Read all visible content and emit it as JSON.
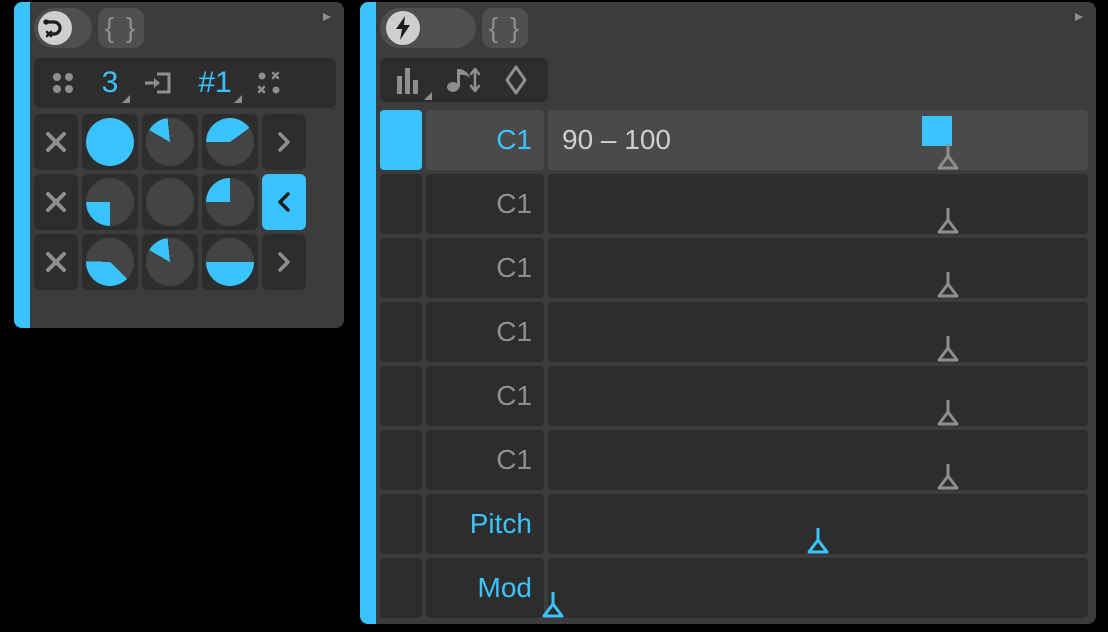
{
  "colors": {
    "accent": "#39c3ff",
    "panel_bg": "#3c3c3c",
    "cell_bg": "#2d2d2d",
    "cell_bg_sel": "#4a4a4a",
    "pill_bg": "#4f4f4f",
    "icon_grey": "#8e8e8e",
    "icon_light": "#cfcfcf",
    "text_light": "#cfcfcf",
    "pie_off": "#444444"
  },
  "left_panel": {
    "header": {
      "mode_toggle_icon": "route",
      "braces_label": "{ }"
    },
    "toolbar": {
      "dice_icon": "four-dots",
      "count_value": "3",
      "input_icon": "step-in",
      "pattern_label": "#1",
      "shuffle_icon": "shuffle-dots"
    },
    "grid": {
      "rows": [
        {
          "pies": [
            {
              "fill_pct": 100,
              "start_deg": 0
            },
            {
              "fill_pct": 15,
              "start_deg": 300
            },
            {
              "fill_pct": 40,
              "start_deg": 270
            }
          ],
          "arrow": ">",
          "arrow_selected": false
        },
        {
          "pies": [
            {
              "fill_pct": 25,
              "start_deg": 180
            },
            {
              "fill_pct": 0,
              "start_deg": 0
            },
            {
              "fill_pct": 25,
              "start_deg": 270
            }
          ],
          "arrow": "<",
          "arrow_selected": true
        },
        {
          "pies": [
            {
              "fill_pct": 38,
              "start_deg": 135
            },
            {
              "fill_pct": 15,
              "start_deg": 300
            },
            {
              "fill_pct": 50,
              "start_deg": 90
            }
          ],
          "arrow": ">",
          "arrow_selected": false
        }
      ]
    }
  },
  "right_panel": {
    "header": {
      "mode_toggle_icon": "bolt",
      "braces_label": "{ }"
    },
    "toolbar": {
      "icons": [
        "piano-bars",
        "note-arrows",
        "diamond-updown"
      ]
    },
    "lanes": [
      {
        "selected": true,
        "label": "C1",
        "value_text": "90 – 100",
        "marker_pos_pct": 72,
        "handle_pos_pct": 74,
        "label_color": "accent",
        "handle_color": "grey",
        "show_marker": true
      },
      {
        "selected": false,
        "label": "C1",
        "value_text": "",
        "marker_pos_pct": 74,
        "handle_pos_pct": 74,
        "label_color": "grey",
        "handle_color": "grey",
        "show_marker": false
      },
      {
        "selected": false,
        "label": "C1",
        "value_text": "",
        "marker_pos_pct": 74,
        "handle_pos_pct": 74,
        "label_color": "grey",
        "handle_color": "grey",
        "show_marker": false
      },
      {
        "selected": false,
        "label": "C1",
        "value_text": "",
        "marker_pos_pct": 74,
        "handle_pos_pct": 74,
        "label_color": "grey",
        "handle_color": "grey",
        "show_marker": false
      },
      {
        "selected": false,
        "label": "C1",
        "value_text": "",
        "marker_pos_pct": 74,
        "handle_pos_pct": 74,
        "label_color": "grey",
        "handle_color": "grey",
        "show_marker": false
      },
      {
        "selected": false,
        "label": "C1",
        "value_text": "",
        "marker_pos_pct": 74,
        "handle_pos_pct": 74,
        "label_color": "grey",
        "handle_color": "grey",
        "show_marker": false
      },
      {
        "selected": false,
        "label": "Pitch",
        "value_text": "",
        "marker_pos_pct": 50,
        "handle_pos_pct": 50,
        "label_color": "accent",
        "handle_color": "accent",
        "show_marker": false
      },
      {
        "selected": false,
        "label": "Mod",
        "value_text": "",
        "marker_pos_pct": 1,
        "handle_pos_pct": 1,
        "label_color": "accent",
        "handle_color": "accent",
        "show_marker": false
      }
    ]
  }
}
